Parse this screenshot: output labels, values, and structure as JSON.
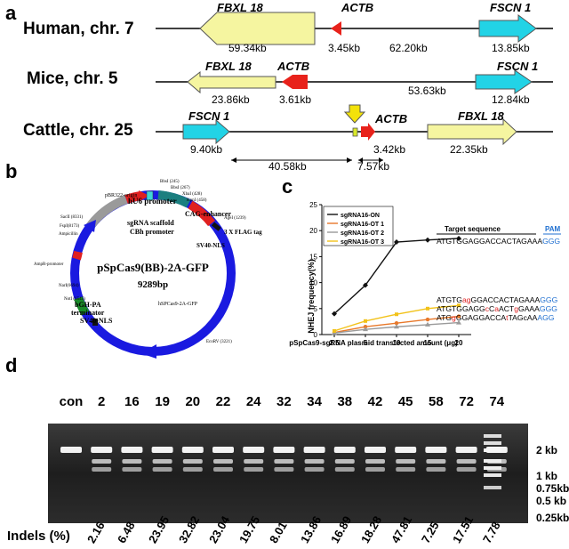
{
  "panel_a": {
    "letter": "a",
    "tracks": [
      {
        "species": "Human, chr. 7",
        "genes": [
          {
            "name": "FBXL 18",
            "color": "#f5f5a0"
          },
          {
            "name": "ACTB",
            "color": "#e8221b"
          },
          {
            "name": "FSCN 1",
            "color": "#22d3e6"
          }
        ],
        "distances": [
          "59.34kb",
          "3.45kb",
          "62.20kb",
          "13.85kb"
        ]
      },
      {
        "species": "Mice, chr. 5",
        "genes": [
          {
            "name": "FBXL 18",
            "color": "#f5f5a0"
          },
          {
            "name": "ACTB",
            "color": "#e8221b"
          },
          {
            "name": "FSCN 1",
            "color": "#22d3e6"
          }
        ],
        "distances": [
          "23.86kb",
          "3.61kb",
          "53.63kb",
          "12.84kb"
        ]
      },
      {
        "species": "Cattle, chr. 25",
        "genes": [
          {
            "name": "FSCN 1",
            "color": "#22d3e6"
          },
          {
            "name": "ACTB",
            "color": "#e8221b"
          },
          {
            "name": "FBXL 18",
            "color": "#f5f5a0"
          }
        ],
        "distances": [
          "9.40kb",
          "3.42kb",
          "22.35kb"
        ],
        "intervals": [
          "40.58kb",
          "7.57kb"
        ]
      }
    ]
  },
  "panel_b": {
    "letter": "b",
    "plasmid_name": "pSpCas9(BB)-2A-GFP",
    "size": "9289bp",
    "features": {
      "hu6": "hU6 promoter",
      "sgrna": "sgRNA scaffold",
      "cbh": "CBh promoter",
      "cag": "CAG-enhancer",
      "flag": "3 X FLAG tag",
      "sv40_top": "SV40-NLS",
      "hspcas9": "hSPCas9-2A-GFP",
      "bgh1": "bGH-PA",
      "bgh2": "terminator",
      "sv40_bottom": "SV40-NLS",
      "ampr_promoter": "AmpR-promoter",
      "ampicillin": "Ampicillin",
      "origin": "pBR322-origin"
    },
    "sites": {
      "bbsi": "BbsI (245)",
      "bbsi2": "BbsI (267)",
      "xbai": "XbaI (428)",
      "kpni": "KpnI (458)",
      "agei": "AgeI (1239)",
      "ecorv": "EcoRV (3221)",
      "nari": "NarI(6694)",
      "noti": "NotI (6545)",
      "saci": "SacII (8331)",
      "fspi": "FspI(8173)"
    }
  },
  "panel_c": {
    "letter": "c",
    "target_header": "Target sequence",
    "pam_header": "PAM",
    "sequences": [
      {
        "parts": [
          [
            "ATGTGGAGGACCACTAGAAA",
            "#000"
          ],
          [
            "GGG",
            "#1f6fd0"
          ]
        ]
      },
      {
        "parts": [
          [
            "ATGTG",
            "#000"
          ],
          [
            "ag",
            "#e02020"
          ],
          [
            "GGACCACTAGAAA",
            "#000"
          ],
          [
            "GGG",
            "#1f6fd0"
          ]
        ]
      },
      {
        "parts": [
          [
            "ATGTGGAGG",
            "#000"
          ],
          [
            "c",
            "#e02020"
          ],
          [
            "C",
            "#000"
          ],
          [
            "a",
            "#e02020"
          ],
          [
            "ACT",
            "#000"
          ],
          [
            "g",
            "#e02020"
          ],
          [
            "GAAA",
            "#000"
          ],
          [
            "GGG",
            "#1f6fd0"
          ]
        ]
      },
      {
        "parts": [
          [
            "ATG",
            "#000"
          ],
          [
            "g",
            "#e02020"
          ],
          [
            "GGAGGACCA",
            "#000"
          ],
          [
            "t",
            "#e02020"
          ],
          [
            "TAGcAA",
            "#000"
          ],
          [
            "AGG",
            "#1f6fd0"
          ]
        ]
      }
    ]
  },
  "panel_d": {
    "letter": "d",
    "lanes": [
      "con",
      "2",
      "16",
      "19",
      "20",
      "22",
      "24",
      "32",
      "34",
      "38",
      "42",
      "45",
      "58",
      "72",
      "74"
    ],
    "indels_label": "Indels (%)",
    "indels": [
      "2.16",
      "6.48",
      "23.95",
      "32.82",
      "23.04",
      "19.75",
      "8.01",
      "13.86",
      "16.89",
      "18.28",
      "47.81",
      "7.25",
      "17.51",
      "7.78"
    ],
    "ladder": [
      "2 kb",
      "1 kb",
      "0.75kb",
      "0.5 kb",
      "0.25kb"
    ]
  },
  "chart_data": {
    "type": "line",
    "title": "",
    "xlabel": "pSpCas9-sgRNA plasmid  transfected amount (μg)",
    "ylabel": "NHEJ frequency(%)",
    "categories": [
      "2.5",
      "5",
      "10",
      "15",
      "20"
    ],
    "ylim": [
      0,
      25
    ],
    "yticks": [
      0,
      5,
      10,
      15,
      20,
      25
    ],
    "legend_position": "top-left",
    "series": [
      {
        "name": "sgRNA16-ON",
        "color": "#111111",
        "values": [
          4.0,
          9.5,
          17.8,
          18.2,
          18.5
        ]
      },
      {
        "name": "sgRNA16-OT 1",
        "color": "#e8782a",
        "values": [
          0.4,
          1.5,
          2.2,
          2.9,
          3.5
        ]
      },
      {
        "name": "sgRNA16-OT 2",
        "color": "#9a9a9a",
        "values": [
          0.3,
          1.0,
          1.5,
          1.9,
          2.3
        ]
      },
      {
        "name": "sgRNA16-OT 3",
        "color": "#f2c21a",
        "values": [
          0.7,
          2.6,
          3.9,
          5.0,
          5.6
        ]
      }
    ]
  }
}
